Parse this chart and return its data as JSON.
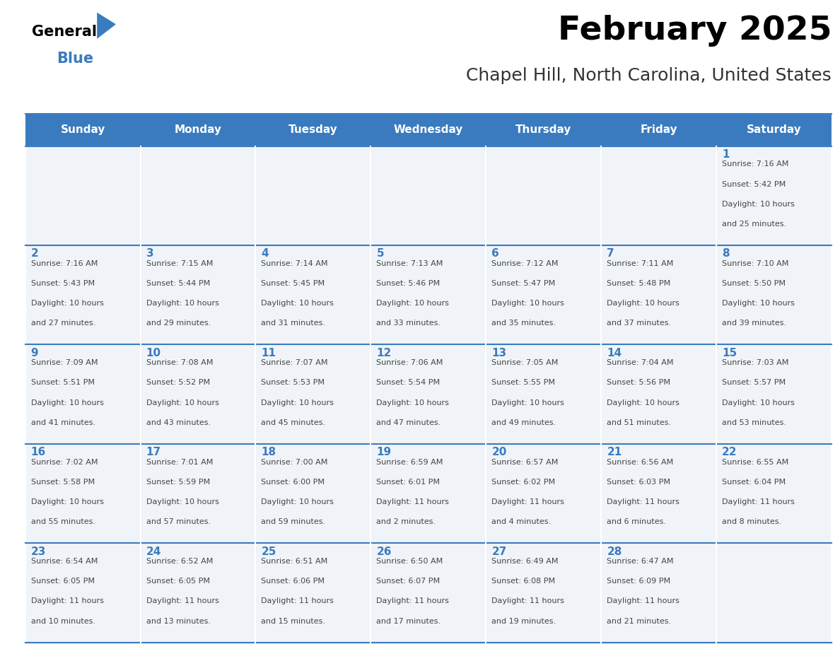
{
  "title": "February 2025",
  "subtitle": "Chapel Hill, North Carolina, United States",
  "days_of_week": [
    "Sunday",
    "Monday",
    "Tuesday",
    "Wednesday",
    "Thursday",
    "Friday",
    "Saturday"
  ],
  "header_bg": "#3a7bbf",
  "header_text": "#ffffff",
  "cell_bg_light": "#f0f4f8",
  "border_color": "#3a7bbf",
  "day_num_color": "#3a7bbf",
  "info_color": "#444444",
  "title_color": "#000000",
  "subtitle_color": "#333333",
  "calendar": [
    [
      null,
      null,
      null,
      null,
      null,
      null,
      1
    ],
    [
      2,
      3,
      4,
      5,
      6,
      7,
      8
    ],
    [
      9,
      10,
      11,
      12,
      13,
      14,
      15
    ],
    [
      16,
      17,
      18,
      19,
      20,
      21,
      22
    ],
    [
      23,
      24,
      25,
      26,
      27,
      28,
      null
    ]
  ],
  "cell_data": {
    "1": {
      "sunrise": "7:16 AM",
      "sunset": "5:42 PM",
      "daylight": "10 hours and 25 minutes."
    },
    "2": {
      "sunrise": "7:16 AM",
      "sunset": "5:43 PM",
      "daylight": "10 hours and 27 minutes."
    },
    "3": {
      "sunrise": "7:15 AM",
      "sunset": "5:44 PM",
      "daylight": "10 hours and 29 minutes."
    },
    "4": {
      "sunrise": "7:14 AM",
      "sunset": "5:45 PM",
      "daylight": "10 hours and 31 minutes."
    },
    "5": {
      "sunrise": "7:13 AM",
      "sunset": "5:46 PM",
      "daylight": "10 hours and 33 minutes."
    },
    "6": {
      "sunrise": "7:12 AM",
      "sunset": "5:47 PM",
      "daylight": "10 hours and 35 minutes."
    },
    "7": {
      "sunrise": "7:11 AM",
      "sunset": "5:48 PM",
      "daylight": "10 hours and 37 minutes."
    },
    "8": {
      "sunrise": "7:10 AM",
      "sunset": "5:50 PM",
      "daylight": "10 hours and 39 minutes."
    },
    "9": {
      "sunrise": "7:09 AM",
      "sunset": "5:51 PM",
      "daylight": "10 hours and 41 minutes."
    },
    "10": {
      "sunrise": "7:08 AM",
      "sunset": "5:52 PM",
      "daylight": "10 hours and 43 minutes."
    },
    "11": {
      "sunrise": "7:07 AM",
      "sunset": "5:53 PM",
      "daylight": "10 hours and 45 minutes."
    },
    "12": {
      "sunrise": "7:06 AM",
      "sunset": "5:54 PM",
      "daylight": "10 hours and 47 minutes."
    },
    "13": {
      "sunrise": "7:05 AM",
      "sunset": "5:55 PM",
      "daylight": "10 hours and 49 minutes."
    },
    "14": {
      "sunrise": "7:04 AM",
      "sunset": "5:56 PM",
      "daylight": "10 hours and 51 minutes."
    },
    "15": {
      "sunrise": "7:03 AM",
      "sunset": "5:57 PM",
      "daylight": "10 hours and 53 minutes."
    },
    "16": {
      "sunrise": "7:02 AM",
      "sunset": "5:58 PM",
      "daylight": "10 hours and 55 minutes."
    },
    "17": {
      "sunrise": "7:01 AM",
      "sunset": "5:59 PM",
      "daylight": "10 hours and 57 minutes."
    },
    "18": {
      "sunrise": "7:00 AM",
      "sunset": "6:00 PM",
      "daylight": "10 hours and 59 minutes."
    },
    "19": {
      "sunrise": "6:59 AM",
      "sunset": "6:01 PM",
      "daylight": "11 hours and 2 minutes."
    },
    "20": {
      "sunrise": "6:57 AM",
      "sunset": "6:02 PM",
      "daylight": "11 hours and 4 minutes."
    },
    "21": {
      "sunrise": "6:56 AM",
      "sunset": "6:03 PM",
      "daylight": "11 hours and 6 minutes."
    },
    "22": {
      "sunrise": "6:55 AM",
      "sunset": "6:04 PM",
      "daylight": "11 hours and 8 minutes."
    },
    "23": {
      "sunrise": "6:54 AM",
      "sunset": "6:05 PM",
      "daylight": "11 hours and 10 minutes."
    },
    "24": {
      "sunrise": "6:52 AM",
      "sunset": "6:05 PM",
      "daylight": "11 hours and 13 minutes."
    },
    "25": {
      "sunrise": "6:51 AM",
      "sunset": "6:06 PM",
      "daylight": "11 hours and 15 minutes."
    },
    "26": {
      "sunrise": "6:50 AM",
      "sunset": "6:07 PM",
      "daylight": "11 hours and 17 minutes."
    },
    "27": {
      "sunrise": "6:49 AM",
      "sunset": "6:08 PM",
      "daylight": "11 hours and 19 minutes."
    },
    "28": {
      "sunrise": "6:47 AM",
      "sunset": "6:09 PM",
      "daylight": "11 hours and 21 minutes."
    }
  },
  "logo_general_color": "#000000",
  "logo_blue_color": "#3a7bbf",
  "logo_triangle_color": "#3a7bbf"
}
